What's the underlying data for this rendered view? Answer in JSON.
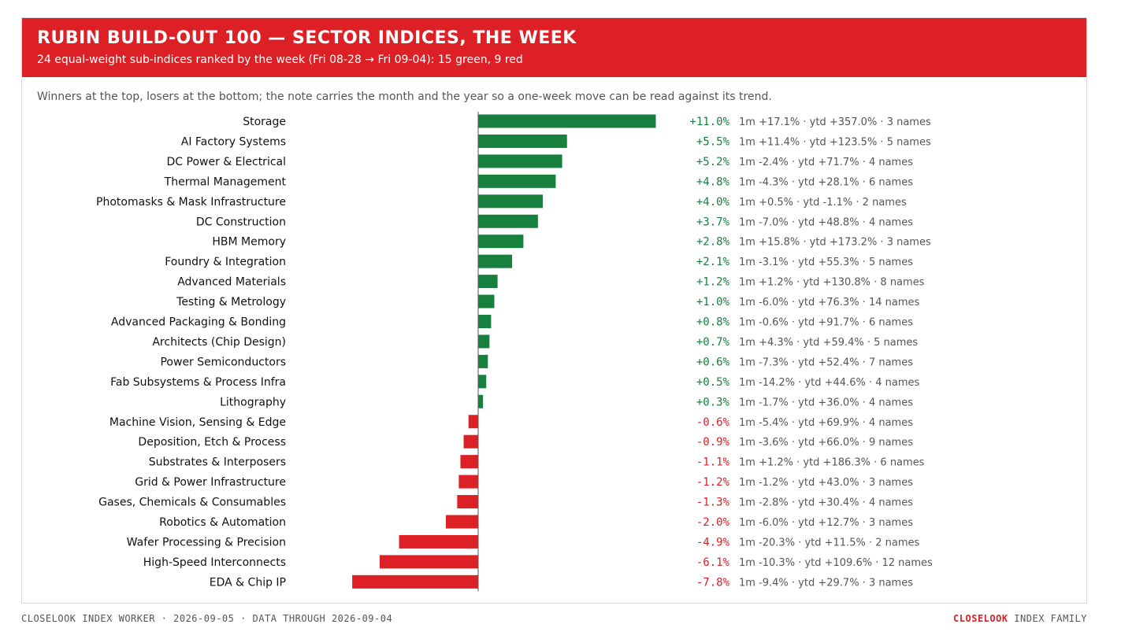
{
  "header": {
    "title": "RUBIN BUILD-OUT 100 — SECTOR INDICES, THE WEEK",
    "subtitle": "24 equal-weight sub-indices ranked by the week (Fri 08-28 → Fri 09-04): 15 green, 9 red"
  },
  "note": "Winners at the top, losers at the bottom; the note carries the month and the year so a one-week move can be read against its trend.",
  "colors": {
    "positive": "#17803f",
    "negative": "#dd2026",
    "header": "#dd2026",
    "axis": "#555555"
  },
  "chart_data": {
    "type": "bar",
    "orientation": "horizontal",
    "title": "RUBIN BUILD-OUT 100 — SECTOR INDICES, THE WEEK",
    "categories": [
      "Storage",
      "AI Factory Systems",
      "DC Power & Electrical",
      "Thermal Management",
      "Photomasks & Mask Infrastructure",
      "DC Construction",
      "HBM Memory",
      "Foundry & Integration",
      "Advanced Materials",
      "Testing & Metrology",
      "Advanced Packaging & Bonding",
      "Architects (Chip Design)",
      "Power Semiconductors",
      "Fab Subsystems & Process Infra",
      "Lithography",
      "Machine Vision, Sensing & Edge",
      "Deposition, Etch & Process",
      "Substrates & Interposers",
      "Grid & Power Infrastructure",
      "Gases, Chemicals & Consumables",
      "Robotics & Automation",
      "Wafer Processing & Precision",
      "High-Speed Interconnects",
      "EDA & Chip IP"
    ],
    "values": [
      11.0,
      5.5,
      5.2,
      4.8,
      4.0,
      3.7,
      2.8,
      2.1,
      1.2,
      1.0,
      0.8,
      0.7,
      0.6,
      0.5,
      0.3,
      -0.6,
      -0.9,
      -1.1,
      -1.2,
      -1.3,
      -2.0,
      -4.9,
      -6.1,
      -7.8
    ],
    "value_labels": [
      "+11.0%",
      "+5.5%",
      "+5.2%",
      "+4.8%",
      "+4.0%",
      "+3.7%",
      "+2.8%",
      "+2.1%",
      "+1.2%",
      "+1.0%",
      "+0.8%",
      "+0.7%",
      "+0.6%",
      "+0.5%",
      "+0.3%",
      "-0.6%",
      "-0.9%",
      "-1.1%",
      "-1.2%",
      "-1.3%",
      "-2.0%",
      "-4.9%",
      "-6.1%",
      "-7.8%"
    ],
    "notes": [
      "1m +17.1% · ytd +357.0% · 3 names",
      "1m +11.4% · ytd +123.5% · 5 names",
      "1m -2.4% · ytd +71.7% · 4 names",
      "1m -4.3% · ytd +28.1% · 6 names",
      "1m +0.5% · ytd -1.1% · 2 names",
      "1m -7.0% · ytd +48.8% · 4 names",
      "1m +15.8% · ytd +173.2% · 3 names",
      "1m -3.1% · ytd +55.3% · 5 names",
      "1m +1.2% · ytd +130.8% · 8 names",
      "1m -6.0% · ytd +76.3% · 14 names",
      "1m -0.6% · ytd +91.7% · 6 names",
      "1m +4.3% · ytd +59.4% · 5 names",
      "1m -7.3% · ytd +52.4% · 7 names",
      "1m -14.2% · ytd +44.6% · 4 names",
      "1m -1.7% · ytd +36.0% · 4 names",
      "1m -5.4% · ytd +69.9% · 4 names",
      "1m -3.6% · ytd +66.0% · 9 names",
      "1m +1.2% · ytd +186.3% · 6 names",
      "1m -1.2% · ytd +43.0% · 3 names",
      "1m -2.8% · ytd +30.4% · 4 names",
      "1m -6.0% · ytd +12.7% · 3 names",
      "1m -20.3% · ytd +11.5% · 2 names",
      "1m -10.3% · ytd +109.6% · 12 names",
      "1m -9.4% · ytd +29.7% · 3 names"
    ],
    "xlim": [
      -7.8,
      11.0
    ],
    "grid": false,
    "legend": "none"
  },
  "footer": {
    "left": "CLOSELOOK INDEX WORKER · 2026-09-05 · DATA THROUGH 2026-09-04",
    "right_brand": "CLOSELOOK",
    "right_rest": " INDEX FAMILY"
  }
}
